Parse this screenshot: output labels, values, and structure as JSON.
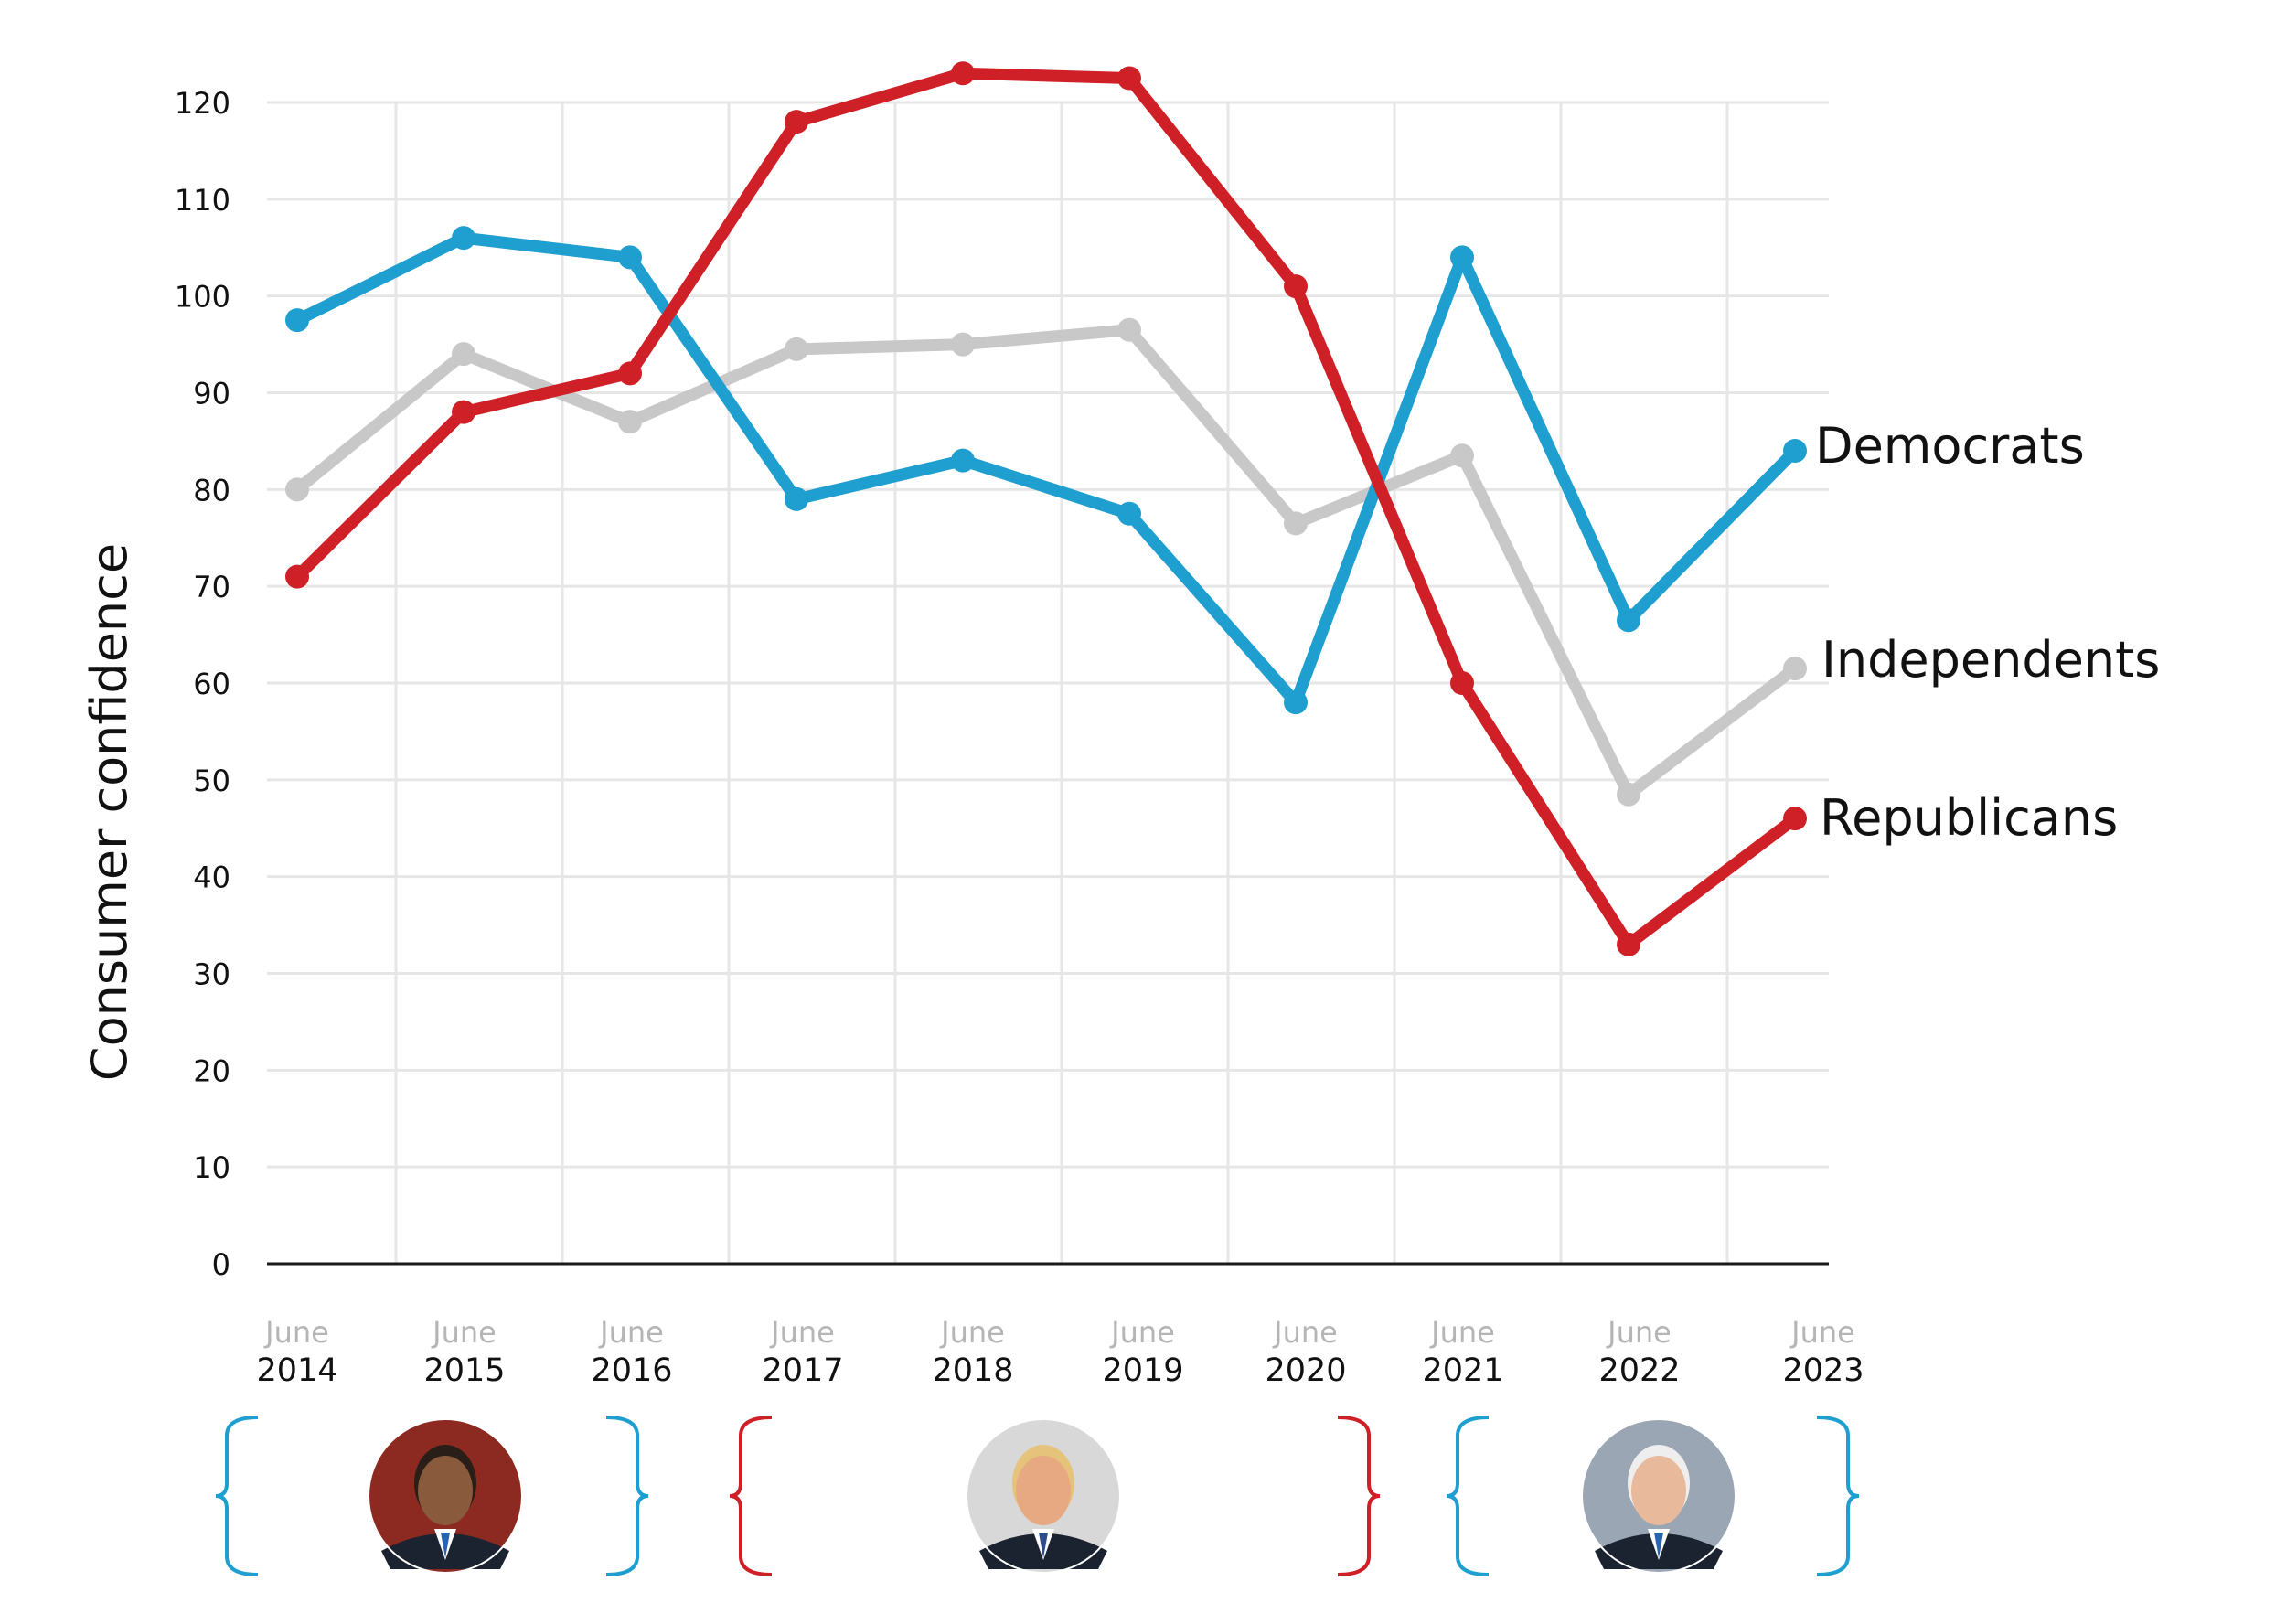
{
  "chart_data": {
    "type": "line",
    "xlabel": "",
    "ylabel": "Consumer confidence",
    "ylim": [
      0,
      120
    ],
    "yticks": [
      0,
      10,
      20,
      30,
      40,
      50,
      60,
      70,
      80,
      90,
      100,
      110,
      120
    ],
    "grid": true,
    "x": [
      {
        "month": "June",
        "year": "2014"
      },
      {
        "month": "June",
        "year": "2015"
      },
      {
        "month": "June",
        "year": "2016"
      },
      {
        "month": "June",
        "year": "2017"
      },
      {
        "month": "June",
        "year": "2018"
      },
      {
        "month": "June",
        "year": "2019"
      },
      {
        "month": "June",
        "year": "2020"
      },
      {
        "month": "June",
        "year": "2021"
      },
      {
        "month": "June",
        "year": "2022"
      },
      {
        "month": "June",
        "year": "2023"
      }
    ],
    "series": [
      {
        "name": "Independents",
        "color": "#c8c8c8",
        "values": [
          80,
          94,
          87,
          94.5,
          95,
          96.5,
          76.5,
          83.5,
          48.5,
          61.5
        ]
      },
      {
        "name": "Democrats",
        "color": "#1e9fd0",
        "values": [
          97.5,
          106,
          104,
          79,
          83,
          77.5,
          58,
          104,
          66.5,
          84
        ]
      },
      {
        "name": "Republicans",
        "color": "#cf2027",
        "values": [
          71,
          88,
          92,
          118,
          123,
          122.5,
          101,
          60,
          33,
          46
        ]
      }
    ],
    "legend": "inline-right",
    "presidential_terms": [
      {
        "from": "2014",
        "to": "2016",
        "color": "#1e9fd0",
        "portrait": "obama-portrait-icon"
      },
      {
        "from": "2017",
        "to": "2020",
        "color": "#cf2027",
        "portrait": "trump-portrait-icon"
      },
      {
        "from": "2021",
        "to": "2023",
        "color": "#1e9fd0",
        "portrait": "biden-portrait-icon"
      }
    ]
  }
}
